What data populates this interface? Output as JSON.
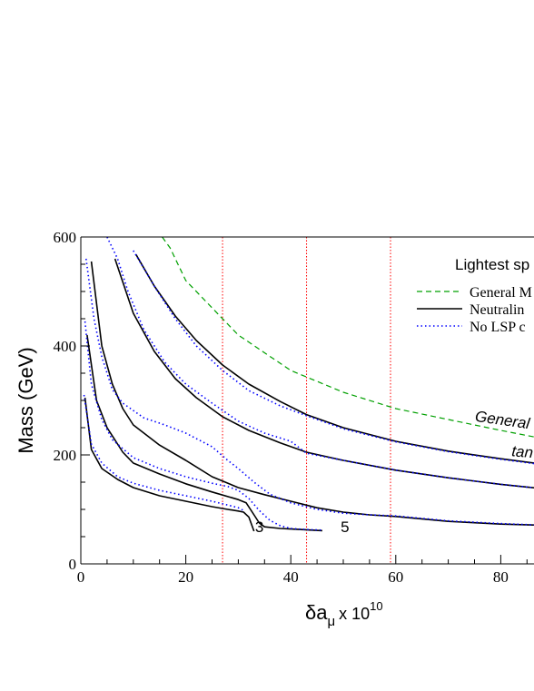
{
  "chart_data": {
    "type": "line",
    "title": "",
    "xlabel_main": "δa",
    "xlabel_sub": "μ",
    "xlabel_suffix": "x 10",
    "xlabel_exp": "10",
    "ylabel": "Mass (GeV)",
    "xlim": [
      0,
      88
    ],
    "ylim": [
      0,
      600
    ],
    "x_ticks": [
      0,
      20,
      40,
      60,
      80
    ],
    "y_ticks": [
      0,
      200,
      400,
      600
    ],
    "grid": false,
    "legend": {
      "title": "Lightest sp",
      "placement": "top-right",
      "entries": [
        "General M",
        "Neutralin",
        "No LSP c"
      ]
    },
    "vertical_lines": [
      {
        "x": 27,
        "color": "#ff0000",
        "style": "dotted"
      },
      {
        "x": 43,
        "color": "#ff0000",
        "style": "dotted"
      },
      {
        "x": 59,
        "color": "#ff0000",
        "style": "dotted"
      }
    ],
    "annotations": [
      {
        "text": "General",
        "x": 75,
        "y": 262,
        "rotate": 8,
        "italic": true
      },
      {
        "text": "tan",
        "x": 82,
        "y": 198,
        "rotate": 5,
        "italic": true
      },
      {
        "text": "3",
        "x": 33.2,
        "y": 58,
        "rotate": 0,
        "italic": false
      },
      {
        "text": "5",
        "x": 49.5,
        "y": 58,
        "rotate": 0,
        "italic": false
      }
    ],
    "colors": {
      "green": "#00a000",
      "black": "#000000",
      "blue": "#0000ff",
      "red": "#ff0000"
    },
    "series": [
      {
        "style": "green-dashed",
        "points": [
          [
            15.5,
            600
          ],
          [
            17,
            580
          ],
          [
            20,
            520
          ],
          [
            25,
            470
          ],
          [
            30,
            420
          ],
          [
            40,
            355
          ],
          [
            50,
            315
          ],
          [
            60,
            285
          ],
          [
            70,
            265
          ],
          [
            80,
            245
          ],
          [
            88,
            230
          ]
        ]
      },
      {
        "style": "black-solid",
        "points": [
          [
            10.5,
            568
          ],
          [
            14,
            510
          ],
          [
            18,
            455
          ],
          [
            22,
            410
          ],
          [
            27,
            365
          ],
          [
            32,
            330
          ],
          [
            38,
            298
          ],
          [
            43,
            274
          ],
          [
            50,
            250
          ],
          [
            60,
            225
          ],
          [
            70,
            207
          ],
          [
            80,
            193
          ],
          [
            88,
            183
          ]
        ]
      },
      {
        "style": "blue-dotted",
        "points": [
          [
            10,
            575
          ],
          [
            14,
            510
          ],
          [
            18,
            450
          ],
          [
            22,
            400
          ],
          [
            27,
            355
          ],
          [
            32,
            318
          ],
          [
            38,
            290
          ],
          [
            43,
            272
          ],
          [
            50,
            248
          ],
          [
            60,
            224
          ],
          [
            70,
            206
          ],
          [
            80,
            192
          ],
          [
            88,
            182
          ]
        ]
      },
      {
        "style": "black-solid",
        "points": [
          [
            6.5,
            560
          ],
          [
            10,
            460
          ],
          [
            14,
            390
          ],
          [
            18,
            340
          ],
          [
            22,
            305
          ],
          [
            27,
            270
          ],
          [
            32,
            245
          ],
          [
            38,
            222
          ],
          [
            43,
            205
          ],
          [
            50,
            190
          ],
          [
            60,
            172
          ],
          [
            70,
            158
          ],
          [
            80,
            146
          ],
          [
            88,
            138
          ]
        ]
      },
      {
        "style": "blue-dotted",
        "points": [
          [
            5,
            600
          ],
          [
            7,
            560
          ],
          [
            9,
            500
          ],
          [
            12,
            430
          ],
          [
            16,
            370
          ],
          [
            20,
            330
          ],
          [
            25,
            295
          ],
          [
            30,
            262
          ],
          [
            35,
            240
          ],
          [
            40,
            225
          ],
          [
            43,
            203
          ],
          [
            50,
            190
          ],
          [
            60,
            172
          ],
          [
            70,
            158
          ],
          [
            80,
            146
          ],
          [
            88,
            138
          ]
        ]
      },
      {
        "style": "black-solid",
        "points": [
          [
            2,
            555
          ],
          [
            4,
            400
          ],
          [
            6,
            330
          ],
          [
            8,
            285
          ],
          [
            10,
            255
          ],
          [
            15,
            218
          ],
          [
            20,
            190
          ],
          [
            25,
            160
          ],
          [
            30,
            140
          ],
          [
            35,
            127
          ],
          [
            40,
            115
          ],
          [
            45,
            103
          ],
          [
            50,
            95
          ],
          [
            55,
            90
          ],
          [
            60,
            87
          ],
          [
            70,
            78
          ],
          [
            80,
            73
          ],
          [
            88,
            71
          ]
        ]
      },
      {
        "style": "blue-dotted",
        "points": [
          [
            1,
            560
          ],
          [
            2.5,
            450
          ],
          [
            4,
            380
          ],
          [
            6,
            320
          ],
          [
            8,
            295
          ],
          [
            12,
            268
          ],
          [
            16,
            255
          ],
          [
            20,
            240
          ],
          [
            25,
            215
          ],
          [
            28,
            190
          ],
          [
            30,
            175
          ],
          [
            33,
            150
          ],
          [
            36,
            128
          ],
          [
            40,
            112
          ],
          [
            45,
            100
          ],
          [
            50,
            93
          ],
          [
            55,
            90
          ],
          [
            60,
            88
          ],
          [
            70,
            79
          ],
          [
            80,
            74
          ],
          [
            88,
            71
          ]
        ]
      },
      {
        "style": "black-solid",
        "points": [
          [
            1.2,
            420
          ],
          [
            3,
            300
          ],
          [
            5,
            250
          ],
          [
            8,
            205
          ],
          [
            10,
            185
          ],
          [
            15,
            165
          ],
          [
            20,
            147
          ],
          [
            25,
            132
          ],
          [
            30,
            118
          ],
          [
            31.5,
            112
          ],
          [
            33,
            90
          ],
          [
            34,
            75
          ],
          [
            35,
            68
          ],
          [
            38,
            65
          ],
          [
            40,
            64
          ],
          [
            42,
            63
          ],
          [
            46,
            61
          ]
        ]
      },
      {
        "style": "blue-dotted",
        "points": [
          [
            0.8,
            445
          ],
          [
            2,
            330
          ],
          [
            4,
            265
          ],
          [
            6,
            228
          ],
          [
            10,
            195
          ],
          [
            15,
            175
          ],
          [
            20,
            160
          ],
          [
            25,
            148
          ],
          [
            28,
            142
          ],
          [
            30,
            135
          ],
          [
            32,
            120
          ],
          [
            34,
            98
          ],
          [
            36,
            80
          ],
          [
            38,
            70
          ],
          [
            40,
            65
          ],
          [
            43,
            63
          ],
          [
            46,
            62
          ]
        ]
      },
      {
        "style": "black-solid",
        "points": [
          [
            0.8,
            305
          ],
          [
            2,
            210
          ],
          [
            4,
            175
          ],
          [
            7,
            155
          ],
          [
            10,
            140
          ],
          [
            15,
            125
          ],
          [
            20,
            115
          ],
          [
            25,
            105
          ],
          [
            28,
            100
          ],
          [
            30,
            97
          ],
          [
            31,
            95
          ],
          [
            32,
            86
          ],
          [
            33,
            60
          ]
        ]
      },
      {
        "style": "blue-dotted",
        "points": [
          [
            0.6,
            310
          ],
          [
            2,
            220
          ],
          [
            4,
            185
          ],
          [
            7,
            160
          ],
          [
            10,
            148
          ],
          [
            15,
            135
          ],
          [
            20,
            125
          ],
          [
            25,
            115
          ],
          [
            28,
            108
          ],
          [
            30,
            103
          ],
          [
            31,
            98
          ]
        ]
      }
    ]
  }
}
